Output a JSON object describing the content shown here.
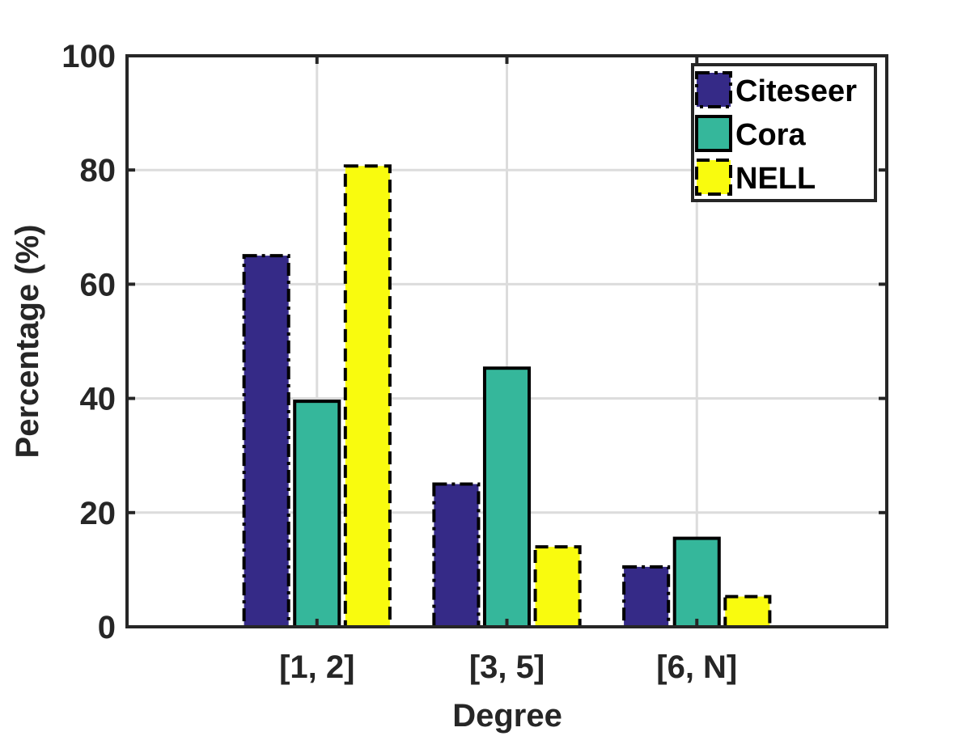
{
  "chart_data": {
    "type": "bar",
    "categories": [
      "[1, 2]",
      "[3, 5]",
      "[6, N]"
    ],
    "series": [
      {
        "name": "Citeseer",
        "values": [
          65,
          25,
          10.5
        ],
        "color": "#352a87",
        "edge": "dashdot"
      },
      {
        "name": "Cora",
        "values": [
          39.5,
          45.3,
          15.5
        ],
        "color": "#35b79b",
        "edge": "solid"
      },
      {
        "name": "NELL",
        "values": [
          80.7,
          14,
          5.3
        ],
        "color": "#f9fb0e",
        "edge": "dashed"
      }
    ],
    "xlabel": "Degree",
    "ylabel": "Percentage (%)",
    "ylim": [
      0,
      100
    ],
    "yticks": [
      0,
      20,
      40,
      60,
      80,
      100
    ],
    "yticklabels": [
      "0",
      "20",
      "40",
      "60",
      "80",
      "100"
    ],
    "grid": true,
    "legend_position": "top-right"
  }
}
